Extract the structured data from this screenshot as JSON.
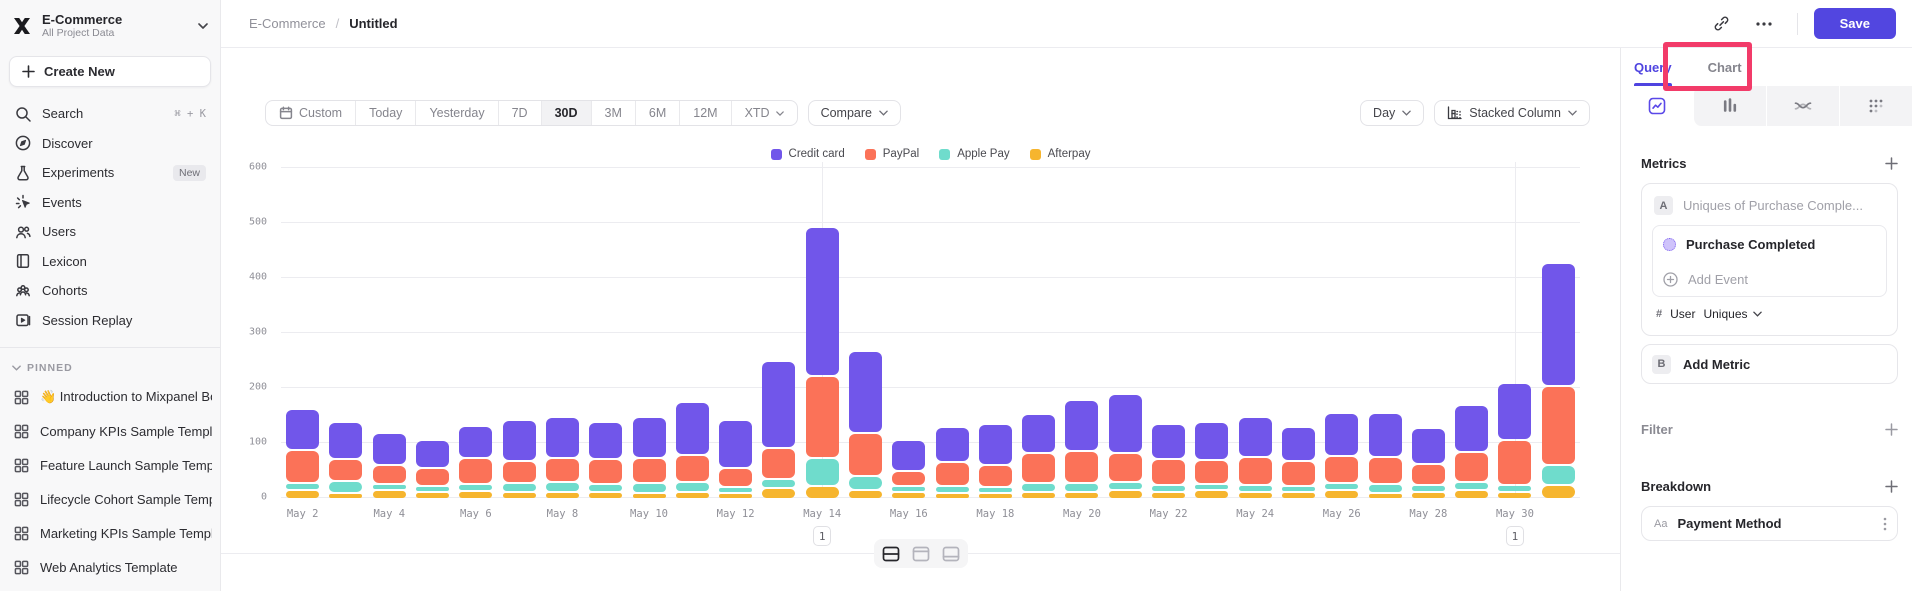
{
  "app": {
    "accent": "#4f44e0",
    "annotation_color": "#f23b69",
    "save_color": "#5246e0"
  },
  "topbar": {
    "breadcrumb": {
      "project": "E-Commerce",
      "separator": "/",
      "page": "Untitled"
    },
    "save_label": "Save"
  },
  "sidebar": {
    "project": {
      "name": "E-Commerce",
      "subtitle": "All Project Data"
    },
    "create_new_label": "Create New",
    "items": [
      {
        "icon": "search-icon",
        "label": "Search",
        "shortcut": "⌘ + K"
      },
      {
        "icon": "discover-icon",
        "label": "Discover"
      },
      {
        "icon": "experiments-icon",
        "label": "Experiments",
        "badge": "New"
      },
      {
        "icon": "events-icon",
        "label": "Events"
      },
      {
        "icon": "users-icon",
        "label": "Users"
      },
      {
        "icon": "lexicon-icon",
        "label": "Lexicon"
      },
      {
        "icon": "cohorts-icon",
        "label": "Cohorts"
      },
      {
        "icon": "session-replay-icon",
        "label": "Session Replay"
      }
    ],
    "pinned_header": "PINNED",
    "pinned": [
      {
        "label": "👋 Introduction to Mixpanel Board"
      },
      {
        "label": "Company KPIs Sample Template"
      },
      {
        "label": "Feature Launch Sample Template"
      },
      {
        "label": "Lifecycle Cohort Sample Template"
      },
      {
        "label": "Marketing KPIs Sample Template"
      },
      {
        "label": "Web Analytics Template"
      }
    ]
  },
  "toolbar": {
    "date_ranges": [
      {
        "label": "Custom",
        "icon": "calendar-icon"
      },
      {
        "label": "Today"
      },
      {
        "label": "Yesterday"
      },
      {
        "label": "7D"
      },
      {
        "label": "30D"
      },
      {
        "label": "3M"
      },
      {
        "label": "6M"
      },
      {
        "label": "12M"
      },
      {
        "label": "XTD",
        "chevron": true
      }
    ],
    "active_range": "30D",
    "compare_label": "Compare",
    "granularity_label": "Day",
    "chart_type_label": "Stacked Column"
  },
  "chart_data": {
    "type": "bar",
    "stacked": true,
    "title": "",
    "xlabel": "",
    "ylabel": "",
    "ylim": [
      0,
      600
    ],
    "ytick_step": 100,
    "grid": true,
    "legend_position": "top",
    "x_label_every": 2,
    "categories": [
      "May 2",
      "May 3",
      "May 4",
      "May 5",
      "May 6",
      "May 7",
      "May 8",
      "May 9",
      "May 10",
      "May 11",
      "May 12",
      "May 13",
      "May 14",
      "May 15",
      "May 16",
      "May 17",
      "May 18",
      "May 19",
      "May 20",
      "May 21",
      "May 22",
      "May 23",
      "May 24",
      "May 25",
      "May 26",
      "May 27",
      "May 28",
      "May 29",
      "May 30",
      "May 31"
    ],
    "series": [
      {
        "name": "Credit card",
        "color": "#7156ea",
        "values": [
          71,
          64,
          55,
          46,
          56,
          71,
          71,
          63,
          70,
          92,
          83,
          154,
          267,
          145,
          54,
          60,
          71,
          68,
          89,
          104,
          61,
          67,
          69,
          58,
          73,
          75,
          63,
          83,
          101,
          220
        ]
      },
      {
        "name": "PayPal",
        "color": "#fb7258",
        "values": [
          57,
          36,
          31,
          29,
          43,
          37,
          40,
          42,
          42,
          47,
          31,
          53,
          145,
          75,
          23,
          40,
          35,
          50,
          55,
          50,
          43,
          40,
          48,
          42,
          46,
          47,
          33,
          50,
          77,
          140
        ]
      },
      {
        "name": "Apple Pay",
        "color": "#6fdccc",
        "values": [
          9,
          18,
          5,
          8,
          9,
          12,
          13,
          11,
          14,
          13,
          8,
          12,
          48,
          23,
          6,
          9,
          8,
          13,
          12,
          10,
          8,
          7,
          8,
          7,
          9,
          12,
          10,
          12,
          9,
          33
        ]
      },
      {
        "name": "Afterpay",
        "color": "#f6b52e",
        "values": [
          13,
          8,
          12,
          9,
          11,
          9,
          10,
          9,
          8,
          10,
          6,
          17,
          20,
          12,
          9,
          8,
          7,
          9,
          10,
          13,
          10,
          12,
          10,
          9,
          13,
          7,
          9,
          12,
          10,
          22
        ]
      }
    ],
    "annotations": [
      {
        "category": "May 14",
        "label": "1"
      },
      {
        "category": "May 30",
        "label": "1"
      }
    ]
  },
  "layout_toggle": {
    "options": [
      "split-view",
      "chart-only",
      "table-only"
    ],
    "active": "split-view"
  },
  "query_panel": {
    "tabs": [
      {
        "label": "Query",
        "active": true
      },
      {
        "label": "Chart",
        "active": false
      }
    ],
    "chart_type_tabs": [
      "insights-icon",
      "funnels-icon",
      "flows-icon",
      "retention-icon"
    ],
    "active_chart_type_tab": 0,
    "metrics": {
      "header": "Metrics",
      "row_badge": "A",
      "row_placeholder": "Uniques of Purchase Comple...",
      "event_name": "Purchase Completed",
      "add_event_label": "Add Event",
      "count_hash": "#",
      "count_entity": "User",
      "count_type": "Uniques",
      "add_metric_badge": "B",
      "add_metric_label": "Add Metric"
    },
    "filter": {
      "header": "Filter"
    },
    "breakdown": {
      "header": "Breakdown",
      "property_type": "Aa",
      "property": "Payment Method"
    }
  }
}
